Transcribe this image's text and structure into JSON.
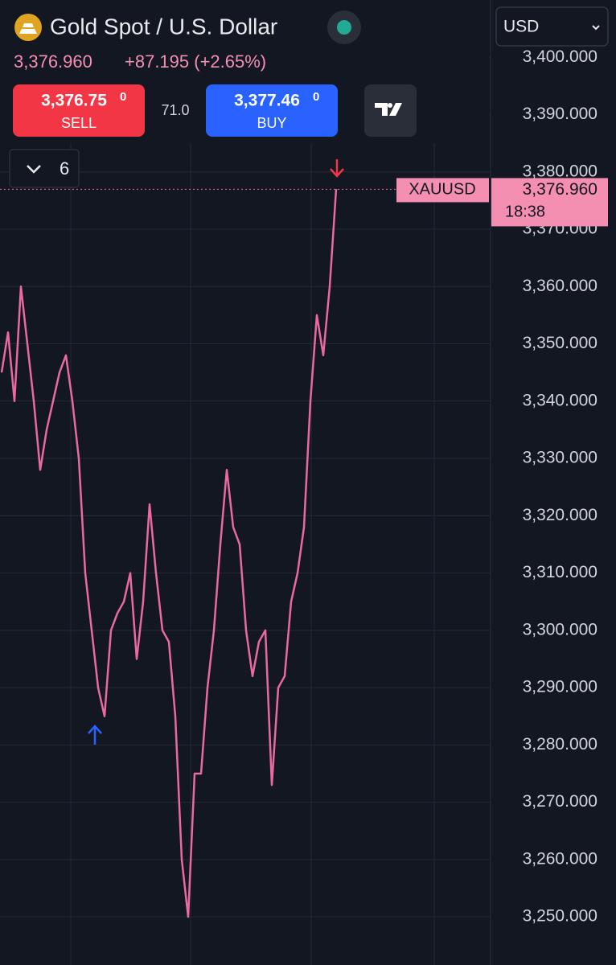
{
  "header": {
    "title": "Gold Spot / U.S. Dollar",
    "price": "3,376.960",
    "change": "+87.195 (+2.65%)",
    "sell_price": "3,376.75",
    "sell_digit": "0",
    "sell_label": "SELL",
    "spread": "71.0",
    "buy_price": "3,377.46",
    "buy_digit": "0",
    "buy_label": "BUY",
    "interval_count": "6",
    "currency": "USD"
  },
  "chart_data": {
    "type": "line",
    "color": "#e96a9f",
    "values": [
      3345,
      3352,
      3340,
      3360,
      3350,
      3340,
      3328,
      3335,
      3340,
      3345,
      3348,
      3340,
      3330,
      3310,
      3300,
      3290,
      3285,
      3300,
      3303,
      3305,
      3310,
      3295,
      3305,
      3322,
      3310,
      3300,
      3298,
      3285,
      3260,
      3250,
      3275,
      3275,
      3290,
      3300,
      3315,
      3328,
      3318,
      3315,
      3300,
      3292,
      3298,
      3300,
      3273,
      3290,
      3292,
      3305,
      3310,
      3318,
      3340,
      3355,
      3348,
      3360,
      3377
    ],
    "ylim": [
      3243,
      3410
    ],
    "yticks": [
      {
        "value": 3250,
        "label": "3,250.000"
      },
      {
        "value": 3260,
        "label": "3,260.000"
      },
      {
        "value": 3270,
        "label": "3,270.000"
      },
      {
        "value": 3280,
        "label": "3,280.000"
      },
      {
        "value": 3290,
        "label": "3,290.000"
      },
      {
        "value": 3300,
        "label": "3,300.000"
      },
      {
        "value": 3310,
        "label": "3,310.000"
      },
      {
        "value": 3320,
        "label": "3,320.000"
      },
      {
        "value": 3330,
        "label": "3,330.000"
      },
      {
        "value": 3340,
        "label": "3,340.000"
      },
      {
        "value": 3350,
        "label": "3,350.000"
      },
      {
        "value": 3360,
        "label": "3,360.000"
      },
      {
        "value": 3370,
        "label": "3,370.000"
      },
      {
        "value": 3380,
        "label": "3,380.000"
      },
      {
        "value": 3390,
        "label": "3,390.000"
      },
      {
        "value": 3400,
        "label": "3,400.000"
      }
    ],
    "grid": true,
    "symbol": "XAUUSD",
    "last_price": {
      "value": 3376.96,
      "label": "3,376.960"
    },
    "countdown": "18:38"
  }
}
